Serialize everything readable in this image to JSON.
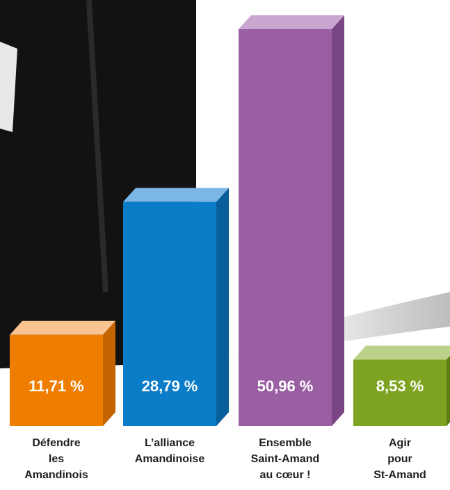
{
  "chart_data": {
    "type": "bar3d",
    "categories": [
      "Défendre\nles\nAmandinois",
      "L’alliance\nAmandinoise",
      "Ensemble\nSaint-Amand\nau cœur !",
      "Agir\npour\nSt-Amand"
    ],
    "values": [
      11.71,
      28.79,
      50.96,
      8.53
    ],
    "value_labels": [
      "11,71 %",
      "28,79 %",
      "50,96 %",
      "8,53 %"
    ],
    "colors": [
      "#ef7d00",
      "#0a7cc8",
      "#9a5ea3",
      "#7ea320"
    ],
    "top_colors": [
      "#f9c48f",
      "#7bb6e5",
      "#c9a6d0",
      "#bcd18a"
    ],
    "side_colors": [
      "#c46400",
      "#085f9c",
      "#7a4584",
      "#5f7d14"
    ]
  }
}
